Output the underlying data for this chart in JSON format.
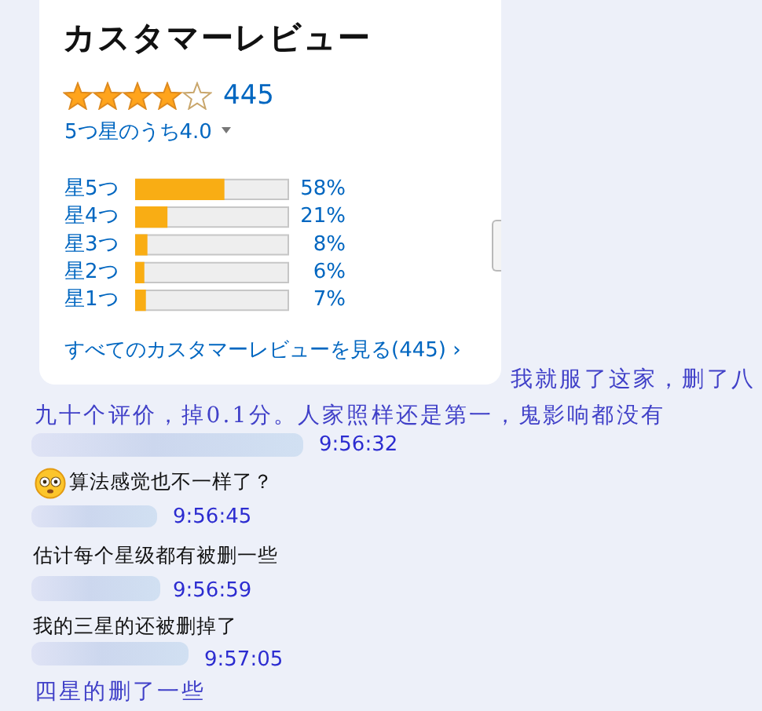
{
  "chart_data": {
    "type": "bar",
    "title": "カスタマーレビュー",
    "orientation": "horizontal",
    "categories": [
      "星5つ",
      "星4つ",
      "星3つ",
      "星2つ",
      "星1つ"
    ],
    "values": [
      58,
      21,
      8,
      6,
      7
    ],
    "value_labels": [
      "58%",
      "21%",
      "8%",
      "6%",
      "7%"
    ],
    "color": "#f9ad14",
    "xlim": [
      0,
      100
    ],
    "tick_labels": "y",
    "annotations": [
      "445",
      "5つ星のうち4.0",
      "すべてのカスタマーレビューを見る(445) ›",
      "我就服了这家，删了八九十个评价，掉0.1分。人家照样还是第一，鬼影响都没有",
      "9:56:32",
      "算法感觉也不一样了？",
      "9:56:45",
      "估计每个星级都有被删一些",
      "9:56:59",
      "我的三星的还被删掉了",
      "9:57:05",
      "四星的删了一些"
    ]
  }
}
